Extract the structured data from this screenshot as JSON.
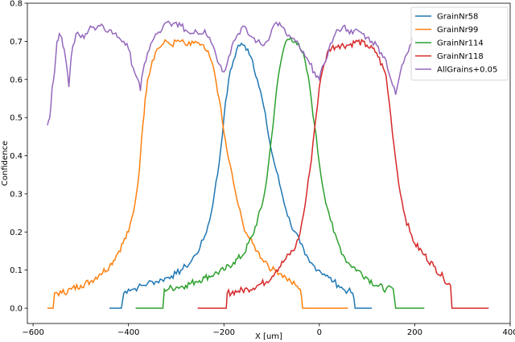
{
  "chart_data": {
    "type": "line",
    "title": "",
    "xlabel": "X [um]",
    "ylabel": "Confidence",
    "xlim": [
      -612,
      400
    ],
    "ylim": [
      -0.04,
      0.8
    ],
    "xticks": [
      -600,
      -400,
      -200,
      0,
      200,
      400
    ],
    "yticks": [
      0.0,
      0.1,
      0.2,
      0.3,
      0.4,
      0.5,
      0.6,
      0.7,
      0.8
    ],
    "grid": false,
    "legend_position": "top-right",
    "series": [
      {
        "name": "GrainNr58",
        "color": "#1f77b4",
        "x": [
          -440,
          -415,
          -410,
          -400,
          -390,
          -380,
          -370,
          -360,
          -350,
          -340,
          -330,
          -320,
          -310,
          -300,
          -290,
          -280,
          -270,
          -260,
          -250,
          -240,
          -230,
          -220,
          -210,
          -200,
          -190,
          -180,
          -170,
          -160,
          -150,
          -140,
          -130,
          -120,
          -110,
          -100,
          -90,
          -80,
          -70,
          -60,
          -50,
          -40,
          -30,
          -20,
          -10,
          0,
          10,
          20,
          30,
          40,
          50,
          60,
          70,
          75,
          110
        ],
        "y": [
          0.0,
          0.0,
          0.04,
          0.05,
          0.05,
          0.055,
          0.06,
          0.065,
          0.07,
          0.07,
          0.075,
          0.08,
          0.085,
          0.09,
          0.1,
          0.11,
          0.12,
          0.14,
          0.16,
          0.19,
          0.23,
          0.3,
          0.38,
          0.5,
          0.6,
          0.65,
          0.69,
          0.69,
          0.68,
          0.65,
          0.6,
          0.55,
          0.48,
          0.41,
          0.36,
          0.31,
          0.26,
          0.22,
          0.2,
          0.17,
          0.14,
          0.12,
          0.11,
          0.1,
          0.09,
          0.08,
          0.07,
          0.06,
          0.05,
          0.045,
          0.04,
          0.0,
          0.0
        ]
      },
      {
        "name": "GrainNr99",
        "color": "#ff7f0e",
        "x": [
          -570,
          -558,
          -555,
          -540,
          -520,
          -500,
          -480,
          -460,
          -440,
          -420,
          -400,
          -390,
          -380,
          -375,
          -370,
          -365,
          -360,
          -350,
          -340,
          -330,
          -320,
          -310,
          -300,
          -290,
          -280,
          -270,
          -260,
          -250,
          -240,
          -230,
          -220,
          -210,
          -200,
          -190,
          -180,
          -170,
          -160,
          -150,
          -140,
          -130,
          -120,
          -110,
          -100,
          -90,
          -80,
          -70,
          -60,
          -50,
          -40,
          -35,
          60
        ],
        "y": [
          0.0,
          0.0,
          0.04,
          0.04,
          0.05,
          0.06,
          0.07,
          0.09,
          0.11,
          0.15,
          0.2,
          0.25,
          0.33,
          0.4,
          0.48,
          0.55,
          0.6,
          0.65,
          0.68,
          0.69,
          0.7,
          0.69,
          0.7,
          0.7,
          0.69,
          0.69,
          0.7,
          0.69,
          0.68,
          0.66,
          0.62,
          0.55,
          0.46,
          0.39,
          0.33,
          0.27,
          0.22,
          0.19,
          0.17,
          0.15,
          0.13,
          0.12,
          0.1,
          0.1,
          0.09,
          0.08,
          0.07,
          0.06,
          0.05,
          0.0,
          0.0
        ]
      },
      {
        "name": "GrainNr114",
        "color": "#2ca02c",
        "x": [
          -385,
          -328,
          -325,
          -300,
          -280,
          -260,
          -240,
          -220,
          -200,
          -180,
          -160,
          -140,
          -120,
          -110,
          -100,
          -90,
          -80,
          -75,
          -70,
          -60,
          -50,
          -40,
          -30,
          -20,
          -10,
          0,
          10,
          20,
          30,
          40,
          50,
          60,
          80,
          100,
          120,
          140,
          155,
          160,
          220
        ],
        "y": [
          0.0,
          0.0,
          0.05,
          0.055,
          0.06,
          0.07,
          0.08,
          0.09,
          0.1,
          0.12,
          0.14,
          0.19,
          0.27,
          0.34,
          0.45,
          0.57,
          0.65,
          0.68,
          0.7,
          0.71,
          0.7,
          0.68,
          0.65,
          0.58,
          0.48,
          0.38,
          0.3,
          0.25,
          0.2,
          0.17,
          0.14,
          0.12,
          0.1,
          0.08,
          0.06,
          0.05,
          0.05,
          0.0,
          0.0
        ]
      },
      {
        "name": "GrainNr118",
        "color": "#d62728",
        "x": [
          -255,
          -195,
          -193,
          -170,
          -150,
          -130,
          -110,
          -90,
          -70,
          -50,
          -40,
          -30,
          -20,
          -10,
          0,
          10,
          20,
          40,
          60,
          80,
          100,
          120,
          140,
          150,
          160,
          170,
          180,
          190,
          200,
          220,
          240,
          260,
          275,
          278,
          355
        ],
        "y": [
          0.0,
          0.0,
          0.04,
          0.045,
          0.05,
          0.06,
          0.07,
          0.1,
          0.13,
          0.16,
          0.2,
          0.27,
          0.36,
          0.47,
          0.58,
          0.64,
          0.68,
          0.69,
          0.69,
          0.7,
          0.69,
          0.67,
          0.61,
          0.5,
          0.39,
          0.3,
          0.24,
          0.2,
          0.17,
          0.14,
          0.11,
          0.08,
          0.06,
          0.0,
          0.0
        ]
      },
      {
        "name": "AllGrains+0.05",
        "color": "#9467bd",
        "x": [
          -570,
          -565,
          -560,
          -555,
          -550,
          -545,
          -540,
          -535,
          -530,
          -525,
          -520,
          -510,
          -500,
          -490,
          -480,
          -470,
          -460,
          -450,
          -440,
          -430,
          -420,
          -410,
          -400,
          -390,
          -380,
          -375,
          -370,
          -360,
          -350,
          -340,
          -330,
          -320,
          -310,
          -300,
          -290,
          -280,
          -270,
          -260,
          -250,
          -240,
          -230,
          -220,
          -210,
          -200,
          -190,
          -180,
          -170,
          -160,
          -150,
          -140,
          -130,
          -120,
          -110,
          -100,
          -90,
          -80,
          -70,
          -60,
          -50,
          -40,
          -30,
          -20,
          -10,
          0,
          10,
          20,
          30,
          40,
          50,
          60,
          70,
          80,
          90,
          100,
          110,
          120,
          130,
          140,
          150,
          160,
          170,
          180,
          190,
          195
        ],
        "y": [
          0.48,
          0.5,
          0.58,
          0.62,
          0.7,
          0.72,
          0.71,
          0.68,
          0.64,
          0.58,
          0.66,
          0.72,
          0.71,
          0.72,
          0.74,
          0.73,
          0.74,
          0.73,
          0.73,
          0.72,
          0.71,
          0.7,
          0.68,
          0.63,
          0.6,
          0.57,
          0.62,
          0.67,
          0.7,
          0.72,
          0.73,
          0.75,
          0.74,
          0.75,
          0.74,
          0.73,
          0.72,
          0.73,
          0.72,
          0.73,
          0.71,
          0.68,
          0.64,
          0.62,
          0.66,
          0.7,
          0.72,
          0.74,
          0.72,
          0.71,
          0.7,
          0.69,
          0.7,
          0.73,
          0.75,
          0.74,
          0.72,
          0.71,
          0.7,
          0.68,
          0.66,
          0.64,
          0.62,
          0.6,
          0.64,
          0.68,
          0.71,
          0.73,
          0.74,
          0.73,
          0.72,
          0.73,
          0.72,
          0.71,
          0.7,
          0.69,
          0.67,
          0.65,
          0.6,
          0.56,
          0.62,
          0.66,
          0.69,
          0.71
        ]
      }
    ]
  }
}
